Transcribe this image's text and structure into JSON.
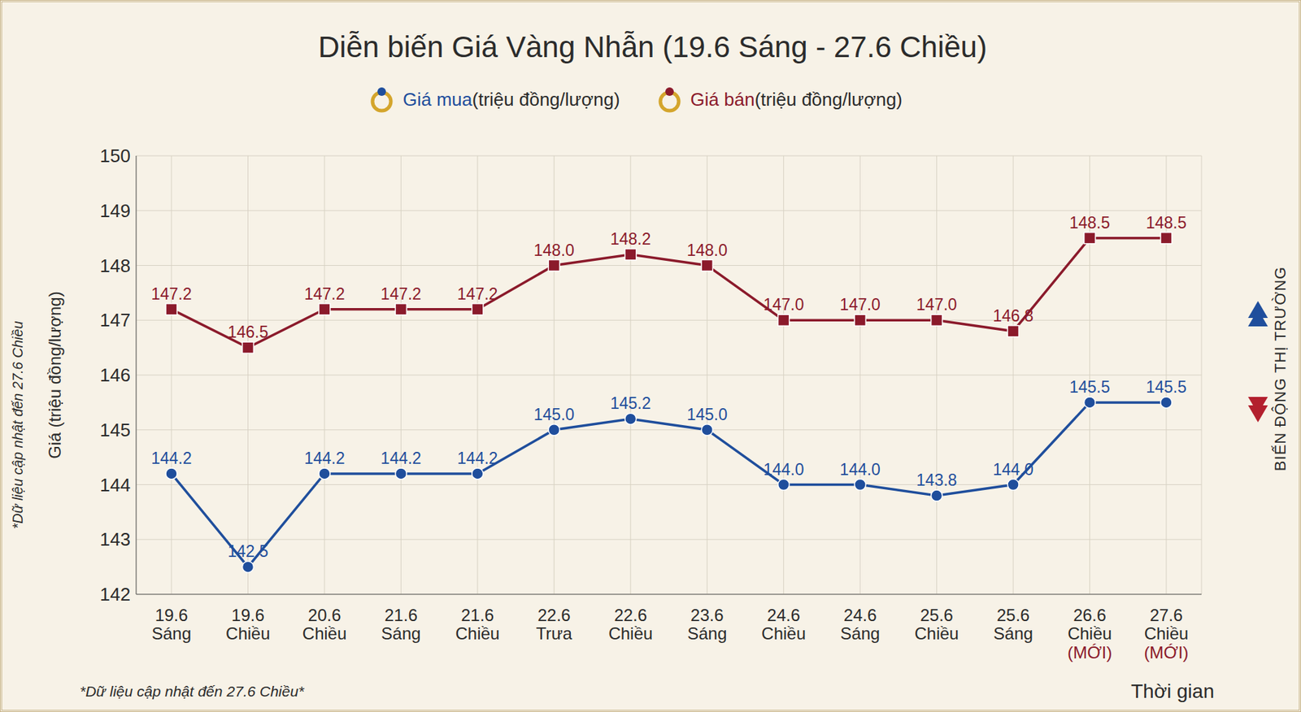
{
  "chart_data": {
    "type": "line",
    "title": "Diễn biến Giá Vàng Nhẫn (19.6 Sáng - 27.6 Chiều)",
    "legend": "top",
    "y_label": "Giá (triệu đồng/lượng)",
    "x_label": "Thời gian",
    "side_label": "BIẾN ĐỘNG THỊ TRƯỜNG",
    "notes": [
      "*Dữ liệu cập nhật đến 27.6 Chiều",
      "*Dữ liệu cập nhật đến 27.6 Chiều*"
    ],
    "categories": [
      "19.6 Sáng",
      "19.6 Chiều",
      "20.6 Chiều",
      "21.6 Sáng",
      "21.6 Chiều",
      "22.6 Trưa",
      "22.6 Chiều",
      "23.6 Sáng",
      "24.6 Chiều",
      "24.6 Sáng",
      "25.6 Chiều",
      "25.6 Sáng",
      "26.6 Chiều (MỚI)",
      "27.6 Chiều (MỚI)"
    ],
    "ylim": [
      142,
      150
    ],
    "yticks": [
      142,
      143,
      144,
      145,
      146,
      147,
      148,
      149,
      150
    ],
    "grid": true,
    "data_labels": true,
    "series": [
      {
        "name": "Giá mua (triệu đồng/lượng)",
        "color": "#1f4e9c",
        "marker": "circle",
        "values": [
          144.2,
          142.5,
          144.2,
          144.2,
          144.2,
          145.0,
          145.2,
          145.0,
          144.0,
          144.0,
          143.8,
          144.0,
          145.5,
          145.5
        ],
        "value_labels": [
          "144.2",
          "142.5",
          "144.2",
          "144.2",
          "144.2",
          "145.0",
          "145.2",
          "145.0",
          "144.0",
          "144.0",
          "143.8",
          "144.0",
          "145.5",
          "145.5"
        ]
      },
      {
        "name": "Giá bán (triệu đồng/lượng)",
        "color": "#8b1a2b",
        "marker": "square",
        "values": [
          147.2,
          146.5,
          147.2,
          147.2,
          147.2,
          148.0,
          148.2,
          148.0,
          147.0,
          147.0,
          147.0,
          146.8,
          148.5,
          148.5
        ],
        "value_labels": [
          "147.2",
          "146.5",
          "147.2",
          "147.2",
          "147.2",
          "148.0",
          "148.2",
          "148.0",
          "147.0",
          "147.0",
          "147.0",
          "146.8",
          "148.5",
          "148.5"
        ]
      }
    ]
  }
}
